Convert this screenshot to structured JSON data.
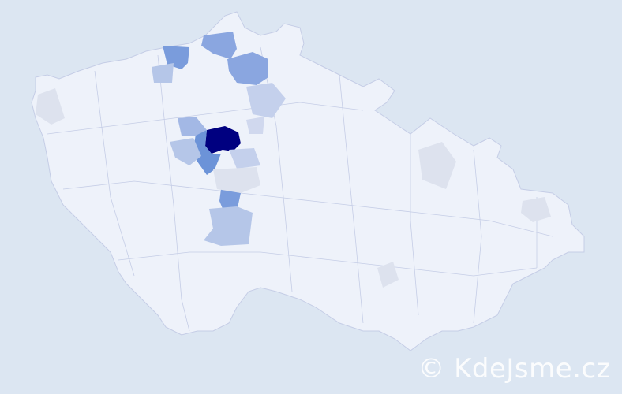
{
  "map": {
    "colors": {
      "background": "#dce6f2",
      "land": "#eef2fa",
      "border": "#c5cde6",
      "level_max": "#000080",
      "level_high": "#6c93d8",
      "level_mid": "#94aee2",
      "level_low": "#b5c6e8",
      "level_min": "#dde2ee"
    }
  },
  "watermark": "© KdeJsme.cz"
}
